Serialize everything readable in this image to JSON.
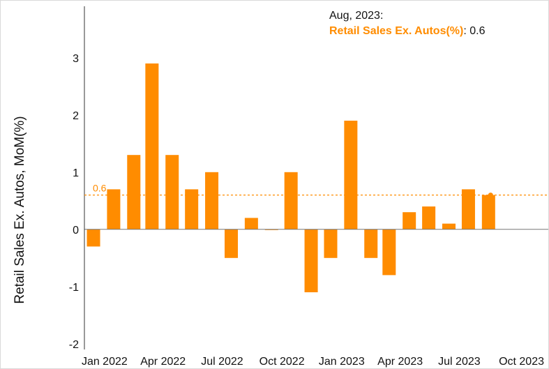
{
  "chart_data": {
    "type": "bar",
    "ylabel": "Retail Sales Ex. Autos, MoM(%)",
    "ylim": [
      -2.1,
      3.9
    ],
    "yticks": [
      -2,
      -1,
      0,
      1,
      2,
      3
    ],
    "xlim": [
      "2021-12-01",
      "2023-11-15"
    ],
    "x_tick_labels": [
      "Jan 2022",
      "Apr 2022",
      "Jul 2022",
      "Oct 2022",
      "Jan 2023",
      "Apr 2023",
      "Jul 2023",
      "Oct 2023"
    ],
    "x_tick_dates": [
      "2022-01-01",
      "2022-04-01",
      "2022-07-01",
      "2022-10-01",
      "2023-01-01",
      "2023-04-01",
      "2023-07-01",
      "2023-10-01"
    ],
    "series": [
      {
        "name": "Retail Sales Ex. Autos(%)",
        "color": "#ff8c00",
        "x": [
          "2021-12",
          "2022-01",
          "2022-02",
          "2022-03",
          "2022-04",
          "2022-05",
          "2022-06",
          "2022-07",
          "2022-08",
          "2022-09",
          "2022-10",
          "2022-11",
          "2022-12",
          "2023-01",
          "2023-02",
          "2023-03",
          "2023-04",
          "2023-05",
          "2023-06",
          "2023-07",
          "2023-08"
        ],
        "values": [
          -0.3,
          0.7,
          1.3,
          2.9,
          1.3,
          0.7,
          1.0,
          -0.5,
          0.2,
          0.0,
          1.0,
          -1.1,
          -0.5,
          1.9,
          -0.5,
          -0.8,
          0.3,
          0.4,
          0.1,
          0.7,
          0.6
        ]
      }
    ],
    "reference_line": {
      "value": 0.6,
      "label": "0.6",
      "style": "dotted"
    },
    "tooltip": {
      "date": "Aug, 2023:",
      "series": "Retail Sales Ex. Autos(%)",
      "separator": ":",
      "value": "0.6"
    },
    "grid": false
  }
}
